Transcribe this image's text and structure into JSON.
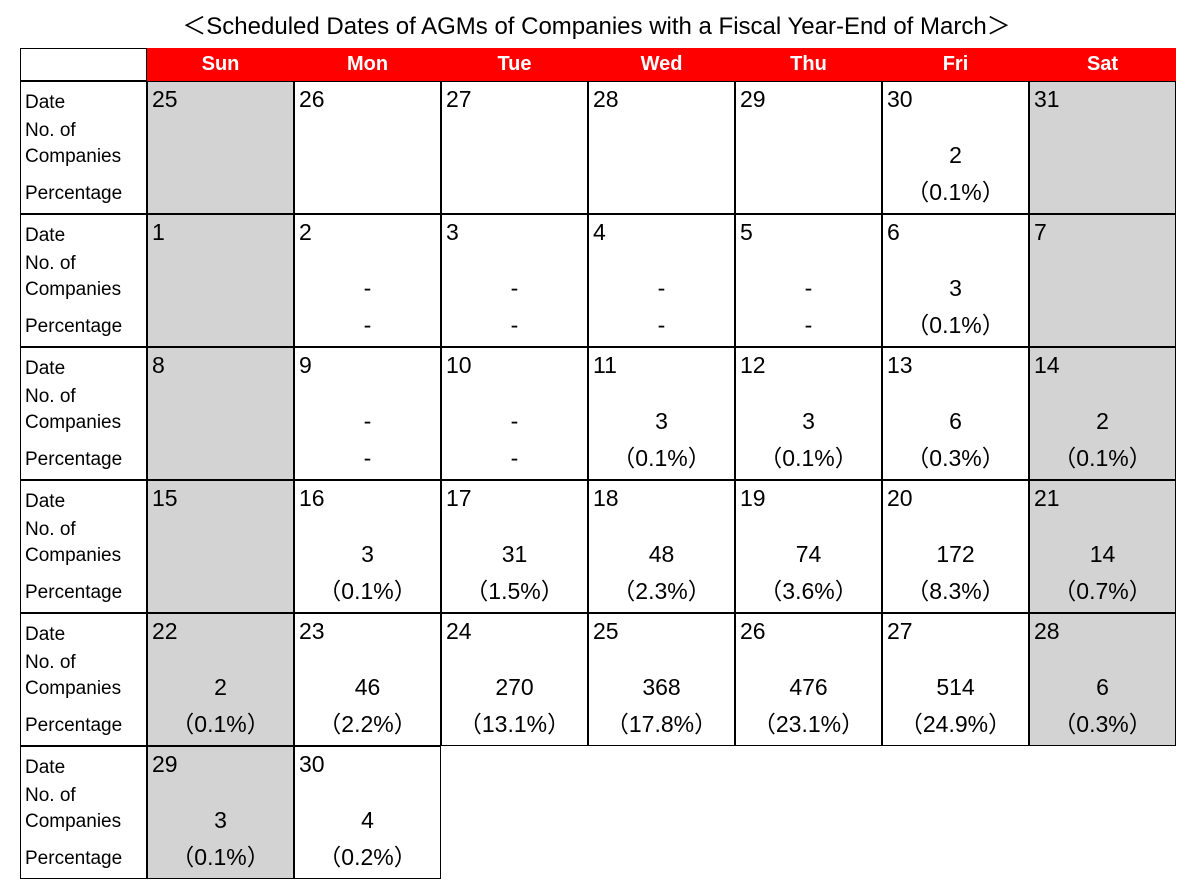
{
  "chart_data": {
    "type": "table",
    "title": "＜Scheduled Dates of AGMs of Companies with a Fiscal Year-End of March＞",
    "days_of_week": [
      "Sun",
      "Mon",
      "Tue",
      "Wed",
      "Thu",
      "Fri",
      "Sat"
    ],
    "row_labels": {
      "date": "Date",
      "no_of": "No. of",
      "companies": "Companies",
      "percentage": "Percentage"
    },
    "weeks": [
      [
        {
          "date": "25",
          "count": "",
          "pct": ""
        },
        {
          "date": "26",
          "count": "",
          "pct": ""
        },
        {
          "date": "27",
          "count": "",
          "pct": ""
        },
        {
          "date": "28",
          "count": "",
          "pct": ""
        },
        {
          "date": "29",
          "count": "",
          "pct": ""
        },
        {
          "date": "30",
          "count": "2",
          "pct": "（0.1%）"
        },
        {
          "date": "31",
          "count": "",
          "pct": ""
        }
      ],
      [
        {
          "date": "1",
          "count": "",
          "pct": ""
        },
        {
          "date": "2",
          "count": "-",
          "pct": "-"
        },
        {
          "date": "3",
          "count": "-",
          "pct": "-"
        },
        {
          "date": "4",
          "count": "-",
          "pct": "-"
        },
        {
          "date": "5",
          "count": "-",
          "pct": "-"
        },
        {
          "date": "6",
          "count": "3",
          "pct": "（0.1%）"
        },
        {
          "date": "7",
          "count": "",
          "pct": ""
        }
      ],
      [
        {
          "date": "8",
          "count": "",
          "pct": ""
        },
        {
          "date": "9",
          "count": "-",
          "pct": "-"
        },
        {
          "date": "10",
          "count": "-",
          "pct": "-"
        },
        {
          "date": "11",
          "count": "3",
          "pct": "（0.1%）"
        },
        {
          "date": "12",
          "count": "3",
          "pct": "（0.1%）"
        },
        {
          "date": "13",
          "count": "6",
          "pct": "（0.3%）"
        },
        {
          "date": "14",
          "count": "2",
          "pct": "（0.1%）"
        }
      ],
      [
        {
          "date": "15",
          "count": "",
          "pct": ""
        },
        {
          "date": "16",
          "count": "3",
          "pct": "（0.1%）"
        },
        {
          "date": "17",
          "count": "31",
          "pct": "（1.5%）"
        },
        {
          "date": "18",
          "count": "48",
          "pct": "（2.3%）"
        },
        {
          "date": "19",
          "count": "74",
          "pct": "（3.6%）"
        },
        {
          "date": "20",
          "count": "172",
          "pct": "（8.3%）"
        },
        {
          "date": "21",
          "count": "14",
          "pct": "（0.7%）"
        }
      ],
      [
        {
          "date": "22",
          "count": "2",
          "pct": "（0.1%）"
        },
        {
          "date": "23",
          "count": "46",
          "pct": "（2.2%）"
        },
        {
          "date": "24",
          "count": "270",
          "pct": "（13.1%）"
        },
        {
          "date": "25",
          "count": "368",
          "pct": "（17.8%）"
        },
        {
          "date": "26",
          "count": "476",
          "pct": "（23.1%）"
        },
        {
          "date": "27",
          "count": "514",
          "pct": "（24.9%）"
        },
        {
          "date": "28",
          "count": "6",
          "pct": "（0.3%）"
        }
      ],
      [
        {
          "date": "29",
          "count": "3",
          "pct": "（0.1%）"
        },
        {
          "date": "30",
          "count": "4",
          "pct": "（0.2%）"
        }
      ]
    ],
    "colors": {
      "header_bg": "#ff0000",
      "header_text": "#ffffff",
      "weekend_bg": "#d3d3d3",
      "weekday_bg": "#ffffff",
      "border": "#000000"
    }
  }
}
